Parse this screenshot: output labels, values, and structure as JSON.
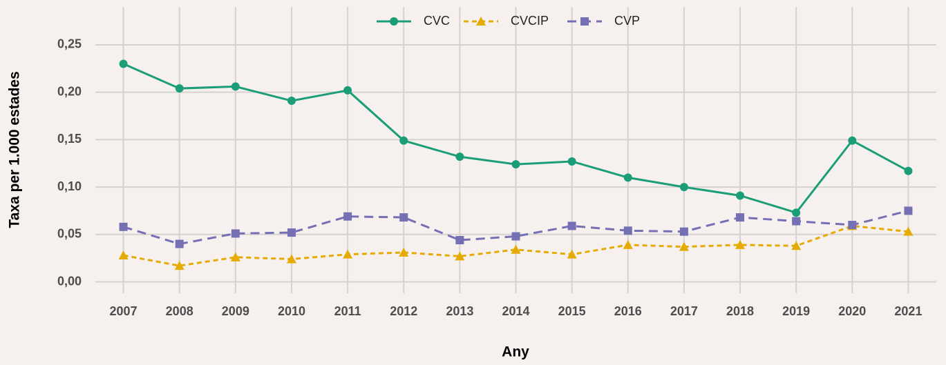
{
  "chart_data": {
    "type": "line",
    "x_label": "Any",
    "y_label": "Taxa per 1.000 estades",
    "x": [
      2007,
      2008,
      2009,
      2010,
      2011,
      2012,
      2013,
      2014,
      2015,
      2016,
      2017,
      2018,
      2019,
      2020,
      2021
    ],
    "xlim": [
      2006.5,
      2021.5
    ],
    "xticks": [
      2007,
      2008,
      2009,
      2010,
      2011,
      2012,
      2013,
      2014,
      2015,
      2016,
      2017,
      2018,
      2019,
      2020,
      2021
    ],
    "ylim": [
      -0.012,
      0.29
    ],
    "yticks": [
      {
        "value": 0,
        "label": "0,00"
      },
      {
        "value": 0.05,
        "label": "0,05"
      },
      {
        "value": 0.1,
        "label": "0,10"
      },
      {
        "value": 0.15,
        "label": "0,15"
      },
      {
        "value": 0.2,
        "label": "0,20"
      },
      {
        "value": 0.25,
        "label": "0,25"
      }
    ],
    "grid": true,
    "legend": "top",
    "series": [
      {
        "name": "CVC",
        "color": "#1b9e77",
        "marker": "circle",
        "dash": "solid",
        "values": [
          0.23,
          0.204,
          0.206,
          0.191,
          0.202,
          0.149,
          0.132,
          0.124,
          0.127,
          0.11,
          0.1,
          0.091,
          0.073,
          0.149,
          0.117
        ]
      },
      {
        "name": "CVCIP",
        "color": "#e6ab02",
        "marker": "triangle",
        "dash": "dotted",
        "values": [
          0.028,
          0.017,
          0.026,
          0.024,
          0.029,
          0.031,
          0.027,
          0.034,
          0.029,
          0.039,
          0.037,
          0.039,
          0.038,
          0.059,
          0.053
        ]
      },
      {
        "name": "CVP",
        "color": "#7570b3",
        "marker": "square",
        "dash": "dashed",
        "values": [
          0.058,
          0.04,
          0.051,
          0.052,
          0.069,
          0.068,
          0.044,
          0.048,
          0.059,
          0.054,
          0.053,
          0.068,
          0.064,
          0.06,
          0.075
        ]
      }
    ]
  }
}
